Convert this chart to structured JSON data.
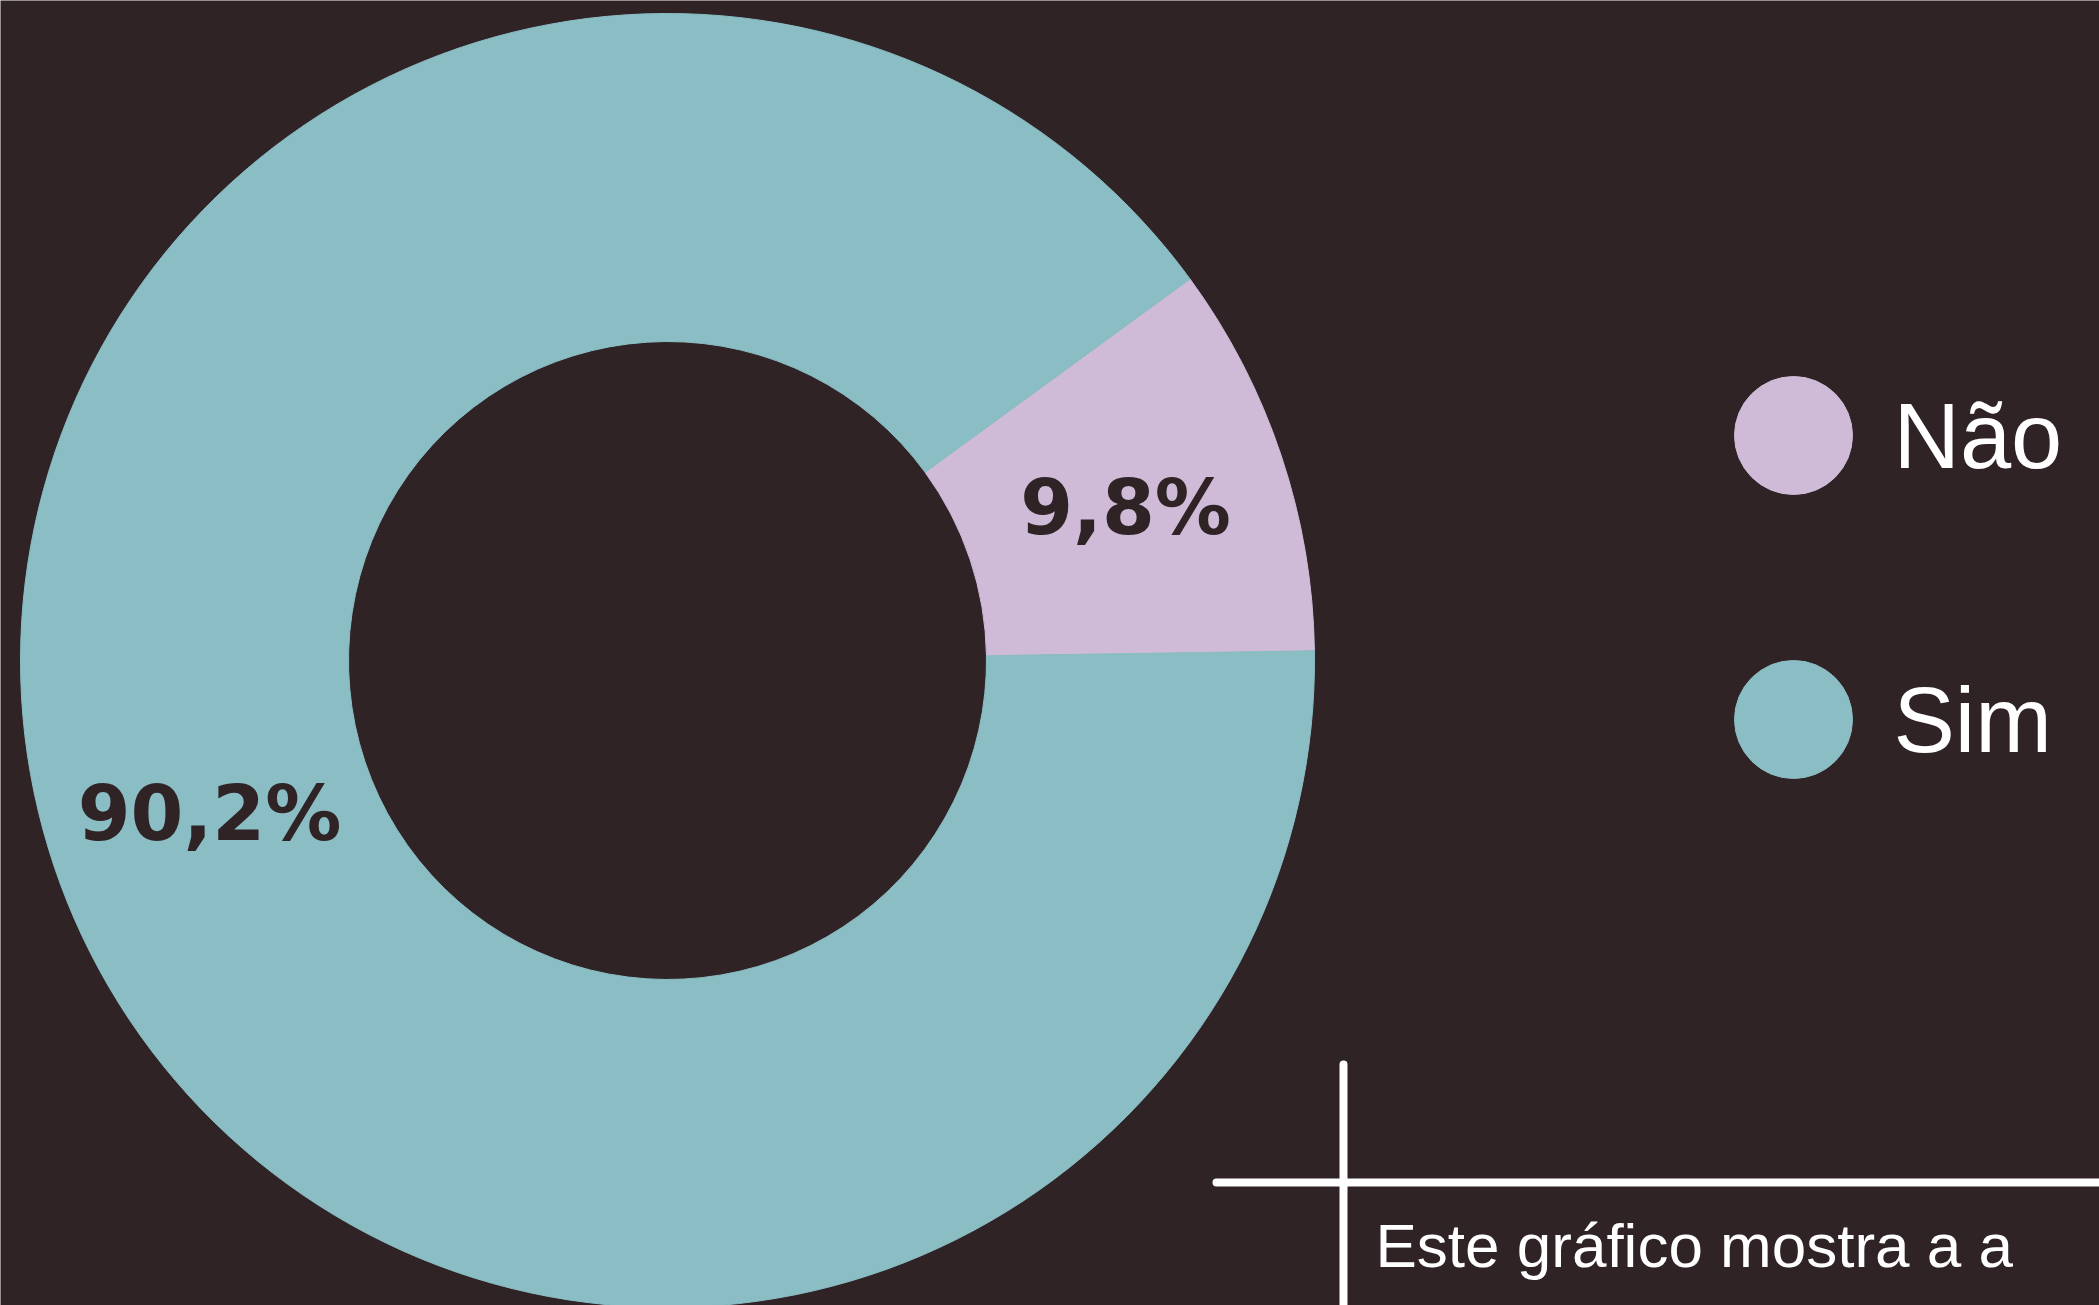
{
  "chart_data": {
    "type": "donut",
    "categories": [
      "Não",
      "Sim"
    ],
    "values": [
      9.8,
      90.2
    ],
    "colors": [
      "#cfbbd8",
      "#8abdc4"
    ],
    "value_labels": [
      "9,8%",
      "90,2%"
    ],
    "legend": "right",
    "annotations": [
      "Este gráfico mostra a a"
    ]
  }
}
